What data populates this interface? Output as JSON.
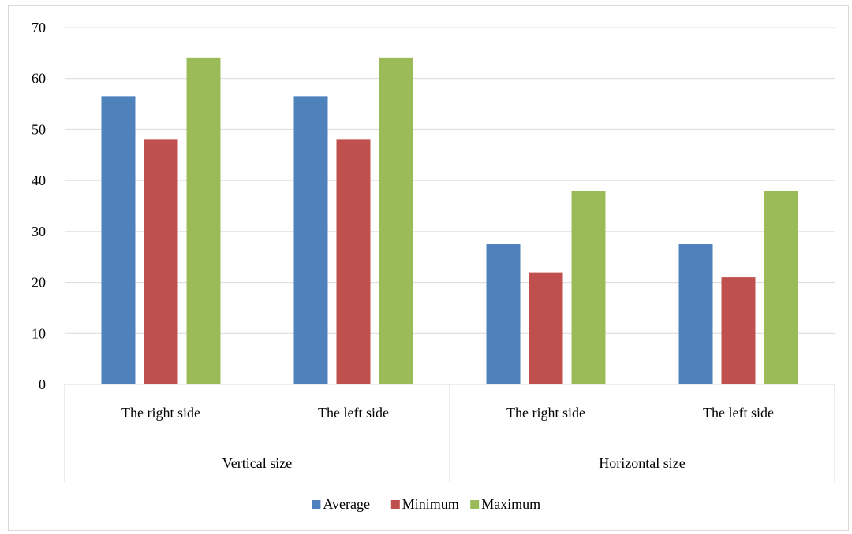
{
  "chart_data": {
    "type": "bar",
    "group_labels": [
      "Vertical size",
      "Horizontal size"
    ],
    "categories": [
      "The right side",
      "The left side",
      "The right side",
      "The left side"
    ],
    "category_groups": [
      0,
      0,
      1,
      1
    ],
    "series": [
      {
        "name": "Average",
        "color": "#4F81BD",
        "values": [
          56.5,
          56.5,
          27.5,
          27.5
        ]
      },
      {
        "name": "Minimum",
        "color": "#C0504D",
        "values": [
          48,
          48,
          22,
          21
        ]
      },
      {
        "name": "Maximum",
        "color": "#9BBB59",
        "values": [
          64,
          64,
          38,
          38
        ]
      }
    ],
    "ylim": [
      0,
      70
    ],
    "yticks": [
      "0",
      "10",
      "20",
      "30",
      "40",
      "50",
      "60",
      "70"
    ],
    "grid": true,
    "legend": "bottom",
    "title": "",
    "xlabel": "",
    "ylabel": ""
  }
}
